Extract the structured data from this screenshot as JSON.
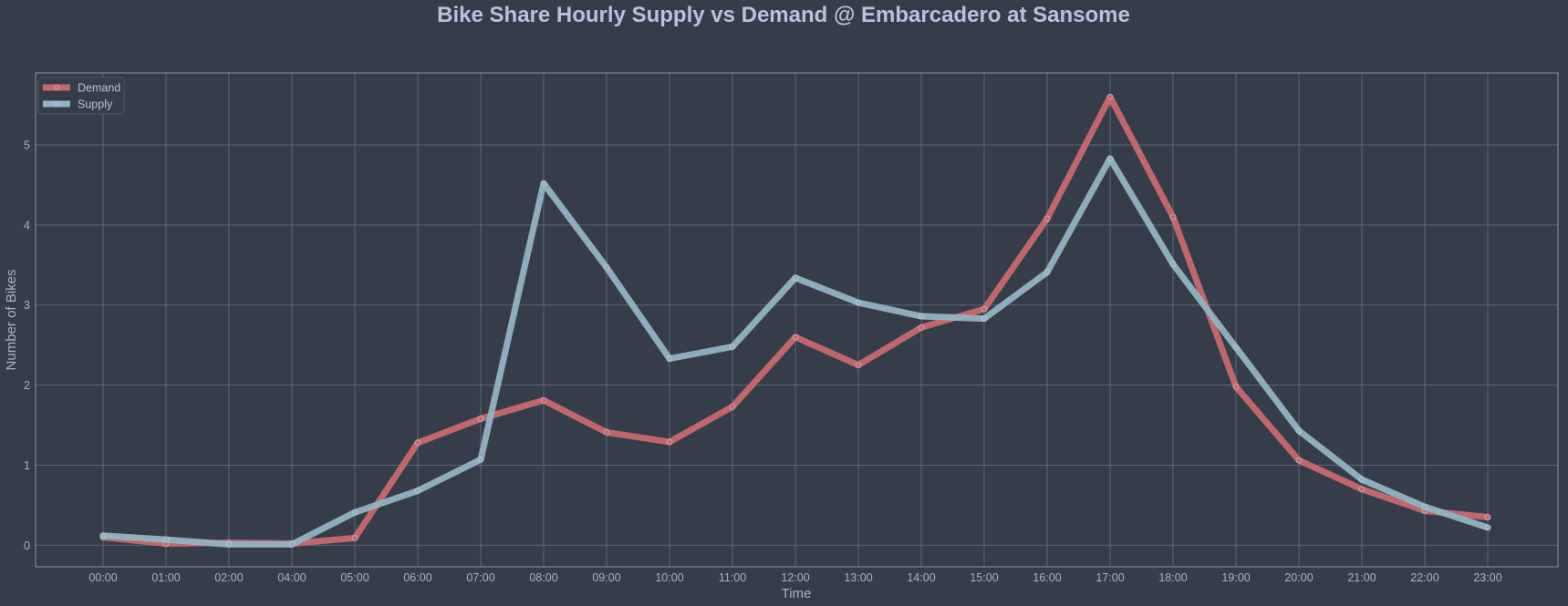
{
  "chart_data": {
    "type": "line",
    "title": "Bike Share Hourly Supply vs Demand @ Embarcadero at Sansome",
    "xlabel": "Time",
    "ylabel": "Number of Bikes",
    "categories": [
      "00:00",
      "01:00",
      "02:00",
      "04:00",
      "05:00",
      "06:00",
      "07:00",
      "08:00",
      "09:00",
      "10:00",
      "11:00",
      "12:00",
      "13:00",
      "14:00",
      "15:00",
      "16:00",
      "17:00",
      "18:00",
      "19:00",
      "20:00",
      "21:00",
      "22:00",
      "23:00"
    ],
    "ylim": [
      -0.27,
      5.9
    ],
    "yticks": [
      0,
      1,
      2,
      3,
      4,
      5
    ],
    "grid": true,
    "legend_position": "top-left",
    "series": [
      {
        "name": "Demand",
        "color": "#c8686e",
        "values": [
          0.1,
          0.02,
          0.03,
          0.02,
          0.09,
          1.28,
          1.58,
          1.81,
          1.41,
          1.29,
          1.73,
          2.6,
          2.25,
          2.72,
          2.95,
          4.08,
          5.6,
          4.1,
          1.98,
          1.06,
          0.7,
          0.43,
          0.35
        ]
      },
      {
        "name": "Supply",
        "color": "#93b3c2",
        "values": [
          0.12,
          0.07,
          0.01,
          0.01,
          0.41,
          0.68,
          1.07,
          4.52,
          3.47,
          2.33,
          2.48,
          3.34,
          3.03,
          2.86,
          2.83,
          3.41,
          4.83,
          3.51,
          2.47,
          1.43,
          0.82,
          0.48,
          0.22
        ]
      }
    ]
  }
}
